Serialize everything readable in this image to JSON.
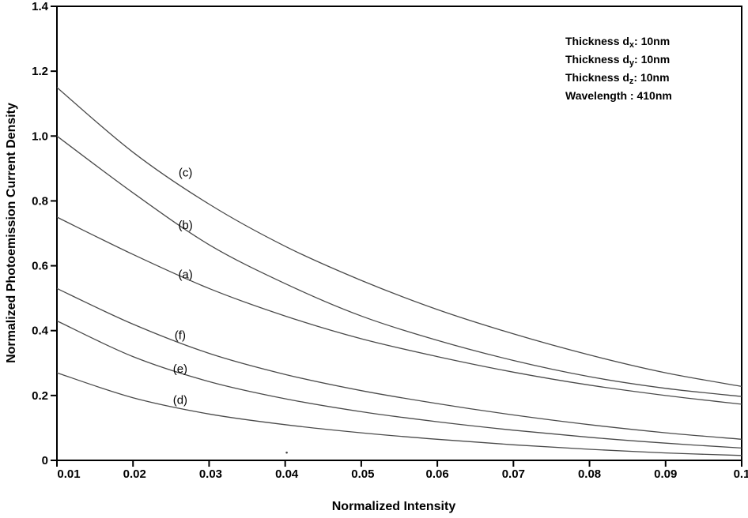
{
  "chart_data": {
    "type": "line",
    "title": "",
    "xlabel": "Normalized Intensity",
    "ylabel": "Normalized Photoemission Current Density",
    "xlim": [
      0.01,
      0.1
    ],
    "ylim": [
      0,
      1.4
    ],
    "grid": false,
    "frame": true,
    "legend_position": "none",
    "x_ticks": {
      "values": [
        0.01,
        0.02,
        0.03,
        0.04,
        0.05,
        0.06,
        0.07,
        0.08,
        0.09,
        0.1
      ],
      "labels": [
        "0.01",
        "0.02",
        "0.03",
        "0.04",
        "0.05",
        "0.06",
        "0.07",
        "0.08",
        "0.09",
        "0.1"
      ]
    },
    "y_ticks": {
      "values": [
        0,
        0.2,
        0.4,
        0.6,
        0.8,
        1.0,
        1.2,
        1.4
      ],
      "labels": [
        "0",
        "0.2",
        "0.4",
        "0.6",
        "0.8",
        "1.0",
        "1.2",
        "1.4"
      ]
    },
    "x": [
      0.01,
      0.02,
      0.03,
      0.04,
      0.05,
      0.06,
      0.07,
      0.08,
      0.09,
      0.1
    ],
    "series": [
      {
        "name": "c",
        "values": [
          1.15,
          0.95,
          0.79,
          0.66,
          0.555,
          0.465,
          0.39,
          0.325,
          0.27,
          0.228
        ],
        "label": {
          "text": "(c)",
          "x": 0.0269,
          "y": 0.887
        }
      },
      {
        "name": "b",
        "values": [
          1.0,
          0.825,
          0.665,
          0.545,
          0.445,
          0.37,
          0.308,
          0.258,
          0.222,
          0.197
        ],
        "label": {
          "text": "(b)",
          "x": 0.0269,
          "y": 0.725
        }
      },
      {
        "name": "a",
        "values": [
          0.75,
          0.635,
          0.53,
          0.445,
          0.375,
          0.32,
          0.272,
          0.232,
          0.2,
          0.173
        ],
        "label": {
          "text": "(a)",
          "x": 0.0269,
          "y": 0.574
        }
      },
      {
        "name": "f",
        "values": [
          0.53,
          0.42,
          0.33,
          0.265,
          0.215,
          0.175,
          0.14,
          0.11,
          0.085,
          0.065
        ],
        "label": {
          "text": "(f)",
          "x": 0.0262,
          "y": 0.386
        }
      },
      {
        "name": "e",
        "values": [
          0.43,
          0.32,
          0.243,
          0.19,
          0.15,
          0.119,
          0.093,
          0.071,
          0.053,
          0.038
        ],
        "label": {
          "text": "(e)",
          "x": 0.0262,
          "y": 0.283
        }
      },
      {
        "name": "d",
        "values": [
          0.27,
          0.193,
          0.143,
          0.11,
          0.085,
          0.065,
          0.048,
          0.034,
          0.023,
          0.015
        ],
        "label": {
          "text": "(d)",
          "x": 0.0262,
          "y": 0.186
        }
      }
    ],
    "annotation": {
      "lines": [
        {
          "pre": "Thickness d",
          "sub": "x",
          "post": ": 10nm"
        },
        {
          "pre": "Thickness d",
          "sub": "y",
          "post": ": 10nm"
        },
        {
          "pre": "Thickness d",
          "sub": "z",
          "post": ": 10nm"
        },
        {
          "pre": "Wavelength : 410nm",
          "sub": "",
          "post": ""
        }
      ]
    },
    "stray_dot": {
      "x": 0.0402,
      "y": 0.024
    },
    "colors": {
      "curve": "#4a4a4a",
      "axis": "#000000",
      "text": "#000000",
      "background": "#ffffff"
    }
  }
}
